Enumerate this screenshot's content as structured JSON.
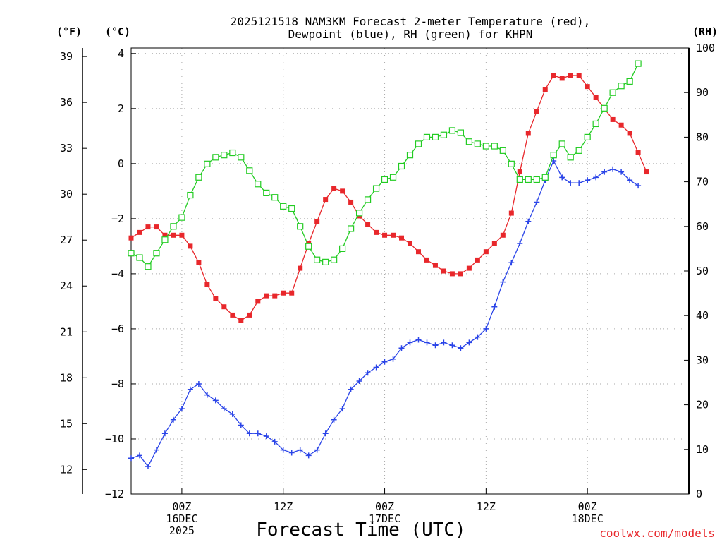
{
  "colors": {
    "temperature": "#e8272b",
    "dewpoint": "#2a44e8",
    "rh": "#22cc22",
    "credit": "#e8272b",
    "grid": "#aaaaaa"
  },
  "chart_data": {
    "type": "line",
    "title_line1": "2025121518 NAM3KM Forecast 2-meter Temperature (red),",
    "title_line2": "Dewpoint (blue), RH (green) for KHPN",
    "xlabel": "Forecast Time (UTC)",
    "credit": "coolwx.com/models",
    "x_hours": [
      -6,
      0,
      1,
      2,
      3,
      4,
      5,
      6,
      7,
      8,
      9,
      10,
      11,
      12,
      13,
      14,
      15,
      16,
      17,
      18,
      19,
      20,
      21,
      22,
      23,
      24,
      25,
      26,
      27,
      28,
      29,
      30,
      31,
      32,
      33,
      34,
      35,
      36,
      37,
      38,
      39,
      40,
      41,
      42,
      43,
      44,
      45,
      46,
      47,
      48,
      49,
      50,
      51,
      52,
      53,
      54,
      55,
      56,
      57,
      58,
      59,
      60
    ],
    "xlim_hours": [
      -6,
      60
    ],
    "x_ticks": [
      {
        "hour": 0,
        "lines": [
          "00Z",
          "16DEC",
          "2025"
        ]
      },
      {
        "hour": 12,
        "lines": [
          "12Z"
        ]
      },
      {
        "hour": 24,
        "lines": [
          "00Z",
          "17DEC"
        ]
      },
      {
        "hour": 36,
        "lines": [
          "12Z"
        ]
      },
      {
        "hour": 48,
        "lines": [
          "00Z",
          "18DEC"
        ]
      }
    ],
    "y_left_c": {
      "unit_label": "(°C)",
      "range": [
        -12,
        4.2
      ],
      "ticks": [
        -12,
        -10,
        -8,
        -6,
        -4,
        -2,
        0,
        2,
        4
      ]
    },
    "y_left_f": {
      "unit_label": "(°F)",
      "range": [
        10.4,
        39.56
      ],
      "ticks": [
        12,
        15,
        18,
        21,
        24,
        27,
        30,
        33,
        36,
        39
      ]
    },
    "y_right_rh": {
      "unit_label": "(RH)",
      "range": [
        0,
        100
      ],
      "ticks": [
        0,
        10,
        20,
        30,
        40,
        50,
        60,
        70,
        80,
        90,
        100
      ]
    },
    "series": [
      {
        "name": "Temperature",
        "unit": "°C",
        "axis": "left_c",
        "color_key": "temperature",
        "marker": "filled-square",
        "points": [
          [
            -6,
            -2.7
          ],
          [
            -5,
            -2.5
          ],
          [
            -4,
            -2.3
          ],
          [
            -3,
            -2.3
          ],
          [
            -2,
            -2.6
          ],
          [
            -1,
            -2.6
          ],
          [
            0,
            -2.6
          ],
          [
            1,
            -3.0
          ],
          [
            2,
            -3.6
          ],
          [
            3,
            -4.4
          ],
          [
            4,
            -4.9
          ],
          [
            5,
            -5.2
          ],
          [
            6,
            -5.5
          ],
          [
            7,
            -5.7
          ],
          [
            8,
            -5.5
          ],
          [
            9,
            -5.0
          ],
          [
            10,
            -4.8
          ],
          [
            11,
            -4.8
          ],
          [
            12,
            -4.7
          ],
          [
            13,
            -4.7
          ],
          [
            14,
            -3.8
          ],
          [
            15,
            -2.9
          ],
          [
            16,
            -2.1
          ],
          [
            17,
            -1.3
          ],
          [
            18,
            -0.9
          ],
          [
            19,
            -1.0
          ],
          [
            20,
            -1.4
          ],
          [
            21,
            -1.9
          ],
          [
            22,
            -2.2
          ],
          [
            23,
            -2.5
          ],
          [
            24,
            -2.6
          ],
          [
            25,
            -2.6
          ],
          [
            26,
            -2.7
          ],
          [
            27,
            -2.9
          ],
          [
            28,
            -3.2
          ],
          [
            29,
            -3.5
          ],
          [
            30,
            -3.7
          ],
          [
            31,
            -3.9
          ],
          [
            32,
            -4.0
          ],
          [
            33,
            -4.0
          ],
          [
            34,
            -3.8
          ],
          [
            35,
            -3.5
          ],
          [
            36,
            -3.2
          ],
          [
            37,
            -2.9
          ],
          [
            38,
            -2.6
          ],
          [
            39,
            -1.8
          ],
          [
            40,
            -0.3
          ],
          [
            41,
            1.1
          ],
          [
            42,
            1.9
          ],
          [
            43,
            2.7
          ],
          [
            44,
            3.2
          ],
          [
            45,
            3.1
          ],
          [
            46,
            3.2
          ],
          [
            47,
            3.2
          ],
          [
            48,
            2.8
          ],
          [
            49,
            2.4
          ],
          [
            50,
            2.0
          ],
          [
            51,
            1.6
          ],
          [
            52,
            1.4
          ],
          [
            53,
            1.1
          ],
          [
            54,
            0.4
          ],
          [
            55,
            -0.3
          ]
        ]
      },
      {
        "name": "Dewpoint",
        "unit": "°C",
        "axis": "left_c",
        "color_key": "dewpoint",
        "marker": "plus",
        "points": [
          [
            -6,
            -10.7
          ],
          [
            -5,
            -10.6
          ],
          [
            -4,
            -11.0
          ],
          [
            -3,
            -10.4
          ],
          [
            -2,
            -9.8
          ],
          [
            -1,
            -9.3
          ],
          [
            0,
            -8.9
          ],
          [
            1,
            -8.2
          ],
          [
            2,
            -8.0
          ],
          [
            3,
            -8.4
          ],
          [
            4,
            -8.6
          ],
          [
            5,
            -8.9
          ],
          [
            6,
            -9.1
          ],
          [
            7,
            -9.5
          ],
          [
            8,
            -9.8
          ],
          [
            9,
            -9.8
          ],
          [
            10,
            -9.9
          ],
          [
            11,
            -10.1
          ],
          [
            12,
            -10.4
          ],
          [
            13,
            -10.5
          ],
          [
            14,
            -10.4
          ],
          [
            15,
            -10.6
          ],
          [
            16,
            -10.4
          ],
          [
            17,
            -9.8
          ],
          [
            18,
            -9.3
          ],
          [
            19,
            -8.9
          ],
          [
            20,
            -8.2
          ],
          [
            21,
            -7.9
          ],
          [
            22,
            -7.6
          ],
          [
            23,
            -7.4
          ],
          [
            24,
            -7.2
          ],
          [
            25,
            -7.1
          ],
          [
            26,
            -6.7
          ],
          [
            27,
            -6.5
          ],
          [
            28,
            -6.4
          ],
          [
            29,
            -6.5
          ],
          [
            30,
            -6.6
          ],
          [
            31,
            -6.5
          ],
          [
            32,
            -6.6
          ],
          [
            33,
            -6.7
          ],
          [
            34,
            -6.5
          ],
          [
            35,
            -6.3
          ],
          [
            36,
            -6.0
          ],
          [
            37,
            -5.2
          ],
          [
            38,
            -4.3
          ],
          [
            39,
            -3.6
          ],
          [
            40,
            -2.9
          ],
          [
            41,
            -2.1
          ],
          [
            42,
            -1.4
          ],
          [
            43,
            -0.6
          ],
          [
            44,
            0.1
          ],
          [
            45,
            -0.5
          ],
          [
            46,
            -0.7
          ],
          [
            47,
            -0.7
          ],
          [
            48,
            -0.6
          ],
          [
            49,
            -0.5
          ],
          [
            50,
            -0.3
          ],
          [
            51,
            -0.2
          ],
          [
            52,
            -0.3
          ],
          [
            53,
            -0.6
          ],
          [
            54,
            -0.8
          ]
        ]
      },
      {
        "name": "RH",
        "unit": "%",
        "axis": "right_rh",
        "color_key": "rh",
        "marker": "open-square",
        "points": [
          [
            -6,
            54
          ],
          [
            -5,
            53
          ],
          [
            -4,
            51
          ],
          [
            -3,
            54
          ],
          [
            -2,
            57
          ],
          [
            -1,
            60
          ],
          [
            0,
            62
          ],
          [
            1,
            67
          ],
          [
            2,
            71
          ],
          [
            3,
            74
          ],
          [
            4,
            75.5
          ],
          [
            5,
            76
          ],
          [
            6,
            76.5
          ],
          [
            7,
            75.5
          ],
          [
            8,
            72.5
          ],
          [
            9,
            69.5
          ],
          [
            10,
            67.5
          ],
          [
            11,
            66.5
          ],
          [
            12,
            64.5
          ],
          [
            13,
            64
          ],
          [
            14,
            60
          ],
          [
            15,
            55.5
          ],
          [
            16,
            52.5
          ],
          [
            17,
            52
          ],
          [
            18,
            52.5
          ],
          [
            19,
            55
          ],
          [
            20,
            59.5
          ],
          [
            21,
            63
          ],
          [
            22,
            66
          ],
          [
            23,
            68.5
          ],
          [
            24,
            70.5
          ],
          [
            25,
            71
          ],
          [
            26,
            73.5
          ],
          [
            27,
            76
          ],
          [
            28,
            78.5
          ],
          [
            29,
            80
          ],
          [
            30,
            80
          ],
          [
            31,
            80.5
          ],
          [
            32,
            81.5
          ],
          [
            33,
            81
          ],
          [
            34,
            79
          ],
          [
            35,
            78.5
          ],
          [
            36,
            78
          ],
          [
            37,
            78
          ],
          [
            38,
            77
          ],
          [
            39,
            74
          ],
          [
            40,
            70.5
          ],
          [
            41,
            70.5
          ],
          [
            42,
            70.5
          ],
          [
            43,
            71
          ],
          [
            44,
            76
          ],
          [
            45,
            78.5
          ],
          [
            46,
            75.5
          ],
          [
            47,
            77
          ],
          [
            48,
            80
          ],
          [
            49,
            83
          ],
          [
            50,
            86.5
          ],
          [
            51,
            90
          ],
          [
            52,
            91.5
          ],
          [
            53,
            92.5
          ],
          [
            54,
            96.5
          ]
        ]
      }
    ]
  }
}
